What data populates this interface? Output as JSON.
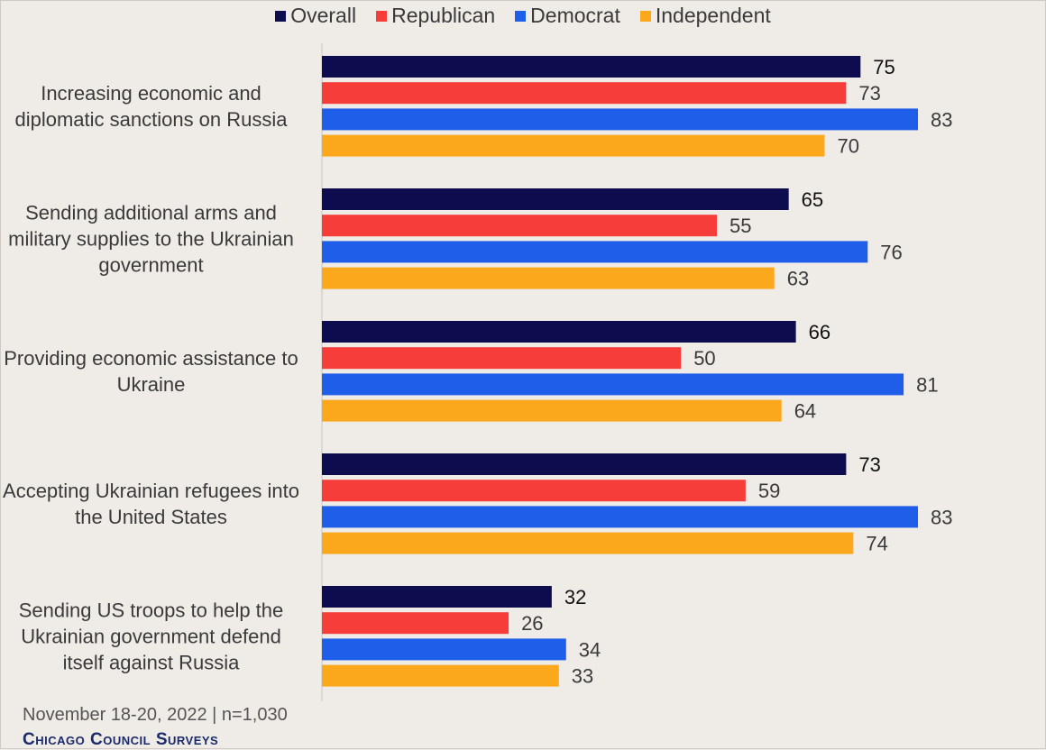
{
  "chart_data": {
    "type": "bar",
    "orientation": "horizontal",
    "categories": [
      "Increasing economic and diplomatic sanctions on Russia",
      "Sending additional arms and military supplies to the Ukrainian government",
      "Providing economic assistance to Ukraine",
      "Accepting Ukrainian refugees into the United States",
      "Sending US troops to help the Ukrainian government defend itself against Russia"
    ],
    "series": [
      {
        "name": "Overall",
        "color": "#0c0c4e",
        "values": [
          75,
          65,
          66,
          73,
          32
        ]
      },
      {
        "name": "Republican",
        "color": "#f63d3a",
        "values": [
          73,
          55,
          50,
          59,
          26
        ]
      },
      {
        "name": "Democrat",
        "color": "#1f5ee8",
        "values": [
          83,
          76,
          81,
          83,
          34
        ]
      },
      {
        "name": "Independent",
        "color": "#fba81c",
        "values": [
          70,
          63,
          64,
          74,
          33
        ]
      }
    ],
    "xlim": [
      0,
      100
    ],
    "legend_position": "top",
    "grid": false
  },
  "footer": {
    "note": "November 18-20, 2022 | n=1,030",
    "brand": "Chicago Council Surveys"
  }
}
